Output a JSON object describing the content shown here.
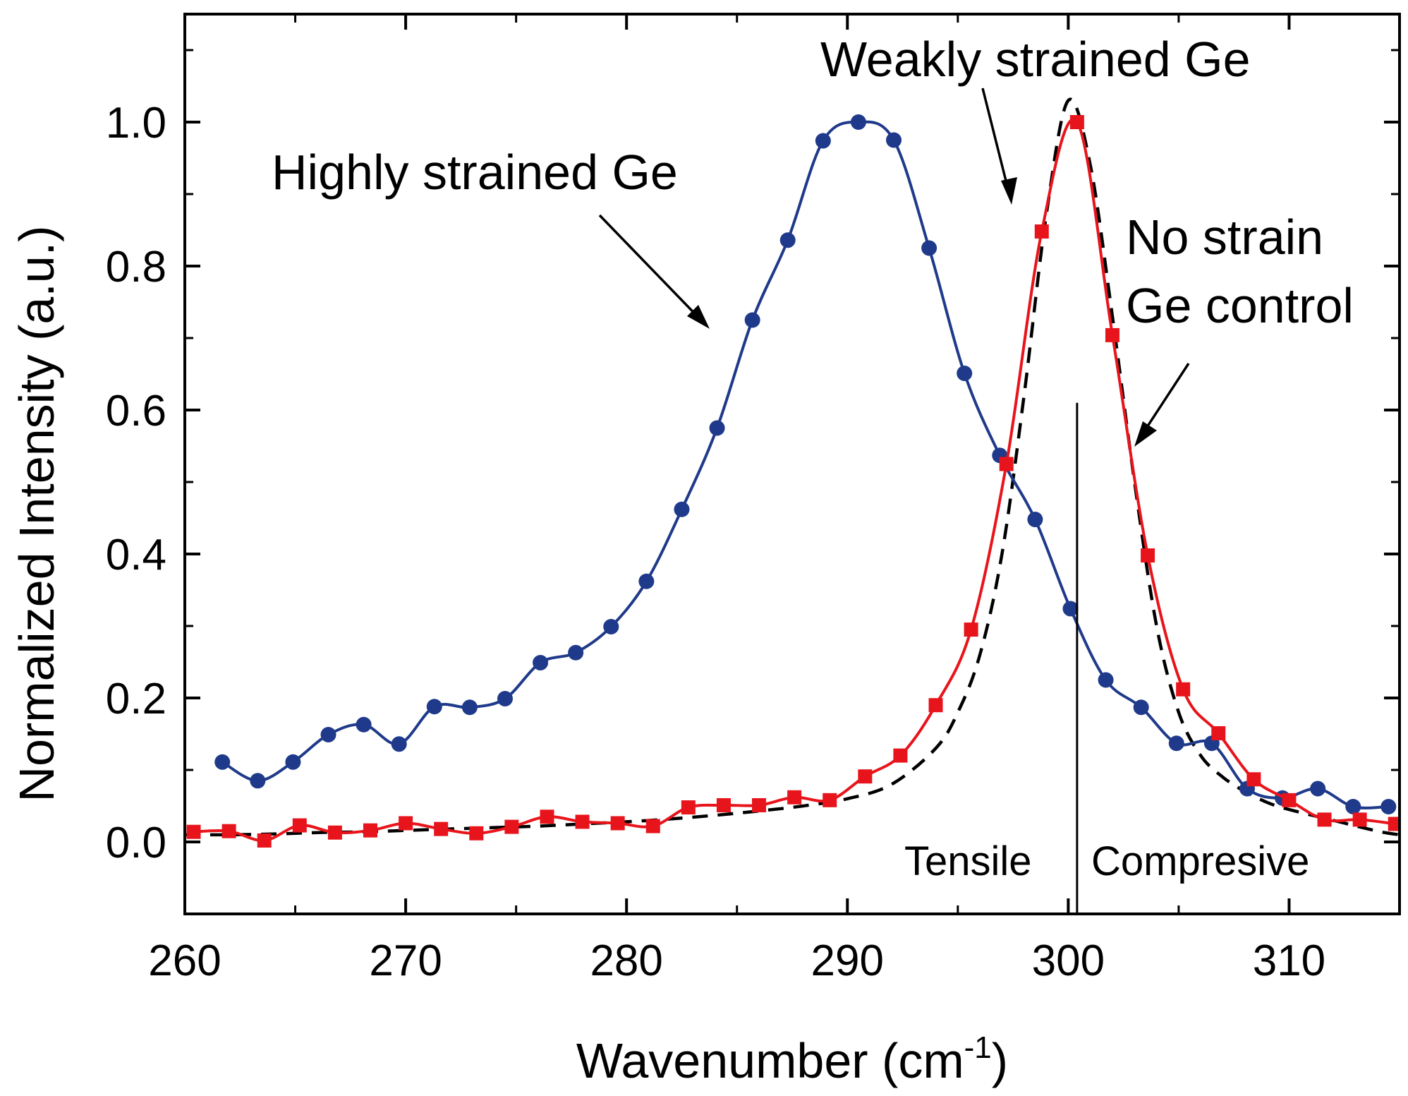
{
  "chart_data": {
    "type": "line",
    "title": "",
    "xlabel": "Wavenumber (cm",
    "xlabel_superscript": "-1",
    "xlabel_suffix": ")",
    "ylabel": "Normalized Intensity (a.u.)",
    "xlim": [
      260,
      315
    ],
    "ylim": [
      -0.1,
      1.15
    ],
    "x_ticks": [
      260,
      270,
      280,
      290,
      300,
      310
    ],
    "x_tick_labels": [
      "260",
      "270",
      "280",
      "290",
      "300",
      "310"
    ],
    "y_ticks": [
      0.0,
      0.2,
      0.4,
      0.6,
      0.8,
      1.0
    ],
    "y_tick_labels": [
      "0.0",
      "0.2",
      "0.4",
      "0.6",
      "0.8",
      "1.0"
    ],
    "x_minor_ticks": [
      265,
      275,
      285,
      295,
      305
    ],
    "y_minor_ticks": [
      -0.1,
      0.1,
      0.3,
      0.5,
      0.7,
      0.9,
      1.1
    ],
    "series": [
      {
        "name": "Highly strained Ge",
        "color": "#1f3a8a",
        "marker": "circle",
        "line_style": "solid",
        "x": [
          261.7,
          263.3,
          264.9,
          266.5,
          268.1,
          269.7,
          271.3,
          272.9,
          274.5,
          276.1,
          277.7,
          279.3,
          280.9,
          282.5,
          284.1,
          285.7,
          287.3,
          288.9,
          290.5,
          292.1,
          293.7,
          295.3,
          296.9,
          298.5,
          300.1,
          301.7,
          303.3,
          304.9,
          306.5,
          308.1,
          309.7,
          311.3,
          312.9,
          314.5
        ],
        "y": [
          0.111,
          0.085,
          0.111,
          0.149,
          0.163,
          0.136,
          0.188,
          0.187,
          0.199,
          0.249,
          0.263,
          0.299,
          0.362,
          0.462,
          0.575,
          0.725,
          0.836,
          0.974,
          1.0,
          0.975,
          0.825,
          0.651,
          0.537,
          0.448,
          0.324,
          0.225,
          0.187,
          0.137,
          0.137,
          0.074,
          0.061,
          0.074,
          0.049,
          0.049
        ]
      },
      {
        "name": "Weakly strained Ge",
        "color": "#e8141b",
        "marker": "square",
        "line_style": "solid",
        "x": [
          260.4,
          262.0,
          263.6,
          265.2,
          266.8,
          268.4,
          270.0,
          271.6,
          273.2,
          274.8,
          276.4,
          278.0,
          279.6,
          281.2,
          282.8,
          284.4,
          286.0,
          287.6,
          289.2,
          290.8,
          292.4,
          294.0,
          295.6,
          297.2,
          298.8,
          300.4,
          302.0,
          303.6,
          305.2,
          306.8,
          308.4,
          310.0,
          311.6,
          313.2,
          314.8
        ],
        "y": [
          0.014,
          0.015,
          0.002,
          0.023,
          0.013,
          0.016,
          0.026,
          0.018,
          0.012,
          0.021,
          0.035,
          0.028,
          0.026,
          0.022,
          0.048,
          0.051,
          0.051,
          0.062,
          0.058,
          0.091,
          0.12,
          0.19,
          0.295,
          0.525,
          0.848,
          1.0,
          0.704,
          0.398,
          0.212,
          0.151,
          0.087,
          0.058,
          0.031,
          0.031,
          0.025
        ]
      },
      {
        "name": "No strain Ge control",
        "color": "#000000",
        "marker": "none",
        "line_style": "dashed",
        "x": [
          260,
          262,
          264,
          266,
          268,
          270,
          272,
          274,
          276,
          278,
          280,
          282,
          284,
          286,
          288,
          290,
          292,
          294,
          295,
          296,
          297,
          298,
          299,
          300,
          301,
          302,
          303,
          304,
          305,
          306,
          307,
          308,
          309,
          310,
          312,
          314,
          315
        ],
        "y": [
          0.01,
          0.01,
          0.011,
          0.013,
          0.014,
          0.016,
          0.018,
          0.02,
          0.022,
          0.025,
          0.028,
          0.032,
          0.037,
          0.043,
          0.05,
          0.06,
          0.08,
          0.13,
          0.18,
          0.26,
          0.4,
          0.62,
          0.87,
          1.03,
          0.94,
          0.73,
          0.5,
          0.3,
          0.18,
          0.12,
          0.09,
          0.07,
          0.055,
          0.045,
          0.03,
          0.015,
          0.01
        ]
      }
    ],
    "annotations": [
      {
        "text": "Highly strained Ge",
        "arrow_to": [
          285.0,
          0.72
        ]
      },
      {
        "text": "Weakly strained Ge",
        "arrow_to": [
          297.6,
          0.9
        ]
      },
      {
        "text": "No strain",
        "arrow_to": [
          302.9,
          0.55
        ]
      },
      {
        "text": "Ge control"
      }
    ],
    "divider": {
      "x": 300.4,
      "y_from": -0.1,
      "y_to": 0.61
    },
    "region_labels": {
      "left": "Tensile",
      "right": "Compresive"
    }
  }
}
